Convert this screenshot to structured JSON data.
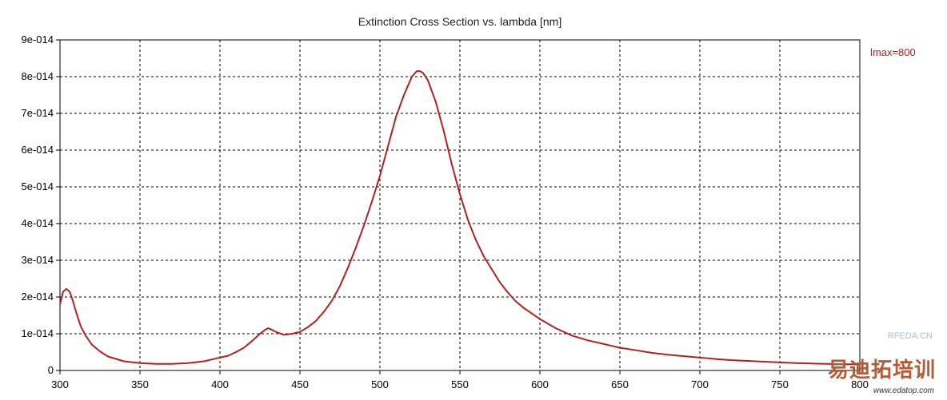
{
  "chart_data": {
    "type": "line",
    "title": "Extinction Cross Section vs. lambda [nm]",
    "xlim": [
      300,
      800
    ],
    "ylim": [
      0,
      9e-14
    ],
    "x_ticks": [
      300,
      350,
      400,
      450,
      500,
      550,
      600,
      650,
      700,
      750,
      800
    ],
    "x_tick_labels": [
      "300",
      "350",
      "400",
      "450",
      "500",
      "550",
      "600",
      "650",
      "700",
      "750",
      "800"
    ],
    "y_ticks": [
      0,
      1e-14,
      2e-14,
      3e-14,
      4e-14,
      5e-14,
      6e-14,
      7e-14,
      8e-14,
      9e-14
    ],
    "y_tick_labels": [
      "0",
      "1e-014",
      "2e-014",
      "3e-014",
      "4e-014",
      "5e-014",
      "6e-014",
      "7e-014",
      "8e-014",
      "9e-014"
    ],
    "grid": true,
    "annotation": "lmax=800",
    "line_color": "#b22222",
    "series": [
      {
        "x": [
          300,
          302,
          304,
          306,
          308,
          310,
          313,
          316,
          320,
          325,
          330,
          340,
          350,
          360,
          370,
          380,
          390,
          395,
          400,
          405,
          410,
          415,
          420,
          425,
          428,
          430,
          432,
          435,
          440,
          445,
          450,
          455,
          460,
          465,
          470,
          475,
          480,
          485,
          490,
          495,
          500,
          505,
          510,
          515,
          520,
          523,
          525,
          527,
          530,
          535,
          540,
          545,
          550,
          555,
          560,
          565,
          570,
          575,
          580,
          585,
          590,
          595,
          600,
          610,
          620,
          630,
          640,
          650,
          660,
          670,
          680,
          690,
          700,
          710,
          720,
          730,
          740,
          750,
          760,
          770,
          780,
          790,
          800
        ],
        "y": [
          1.8e-14,
          2.15e-14,
          2.22e-14,
          2.15e-14,
          1.9e-14,
          1.6e-14,
          1.2e-14,
          9.5e-15,
          7e-15,
          5.2e-15,
          3.8e-15,
          2.5e-15,
          2e-15,
          1.8e-15,
          1.8e-15,
          2e-15,
          2.5e-15,
          3e-15,
          3.5e-15,
          4e-15,
          5e-15,
          6.2e-15,
          8e-15,
          1e-14,
          1.1e-14,
          1.15e-14,
          1.12e-14,
          1.05e-14,
          9.7e-15,
          1e-14,
          1.05e-14,
          1.18e-14,
          1.35e-14,
          1.6e-14,
          1.9e-14,
          2.3e-14,
          2.8e-14,
          3.35e-14,
          3.95e-14,
          4.6e-14,
          5.3e-14,
          6.1e-14,
          6.9e-14,
          7.5e-14,
          8e-14,
          8.15e-14,
          8.15e-14,
          8.1e-14,
          7.9e-14,
          7.3e-14,
          6.5e-14,
          5.6e-14,
          4.8e-14,
          4.1e-14,
          3.55e-14,
          3.1e-14,
          2.75e-14,
          2.4e-14,
          2.12e-14,
          1.88e-14,
          1.7e-14,
          1.55e-14,
          1.4e-14,
          1.15e-14,
          9.5e-15,
          8.2e-15,
          7.2e-15,
          6.2e-15,
          5.5e-15,
          4.8e-15,
          4.3e-15,
          3.9e-15,
          3.5e-15,
          3.1e-15,
          2.8e-15,
          2.6e-15,
          2.4e-15,
          2.2e-15,
          2e-15,
          1.9e-15,
          1.8e-15,
          1.7e-15,
          1.7e-15
        ]
      }
    ]
  },
  "watermark": {
    "site": "RFEDA.CN",
    "brand": "易迪拓培训",
    "url": "www.edatop.com"
  }
}
